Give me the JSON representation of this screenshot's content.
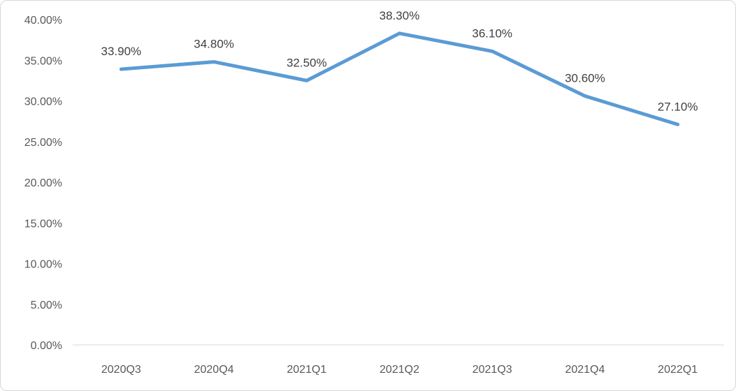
{
  "chart_data": {
    "type": "line",
    "title": "",
    "xlabel": "",
    "ylabel": "",
    "categories": [
      "2020Q3",
      "2020Q4",
      "2021Q1",
      "2021Q2",
      "2021Q3",
      "2021Q4",
      "2022Q1"
    ],
    "series": [
      {
        "name": "rate",
        "values": [
          33.9,
          34.8,
          32.5,
          38.3,
          36.1,
          30.6,
          27.1
        ],
        "data_labels": [
          "33.90%",
          "34.80%",
          "32.50%",
          "38.30%",
          "36.10%",
          "30.60%",
          "27.10%"
        ]
      }
    ],
    "ylim": [
      0,
      40
    ],
    "y_ticks": [
      {
        "value": 40,
        "label": "40.00%"
      },
      {
        "value": 35,
        "label": "35.00%"
      },
      {
        "value": 30,
        "label": "30.00%"
      },
      {
        "value": 25,
        "label": "25.00%"
      },
      {
        "value": 20,
        "label": "20.00%"
      },
      {
        "value": 15,
        "label": "15.00%"
      },
      {
        "value": 10,
        "label": "10.00%"
      },
      {
        "value": 5,
        "label": "5.00%"
      },
      {
        "value": 0,
        "label": "0.00%"
      }
    ],
    "grid": false,
    "legend": false,
    "colors": {
      "line": "#5B9BD5",
      "axis_line": "#D9D9D9",
      "tick_text": "#595959",
      "data_label_text": "#404040",
      "background": "#FFFFFF",
      "frame_border": "#D8D8D8"
    }
  }
}
